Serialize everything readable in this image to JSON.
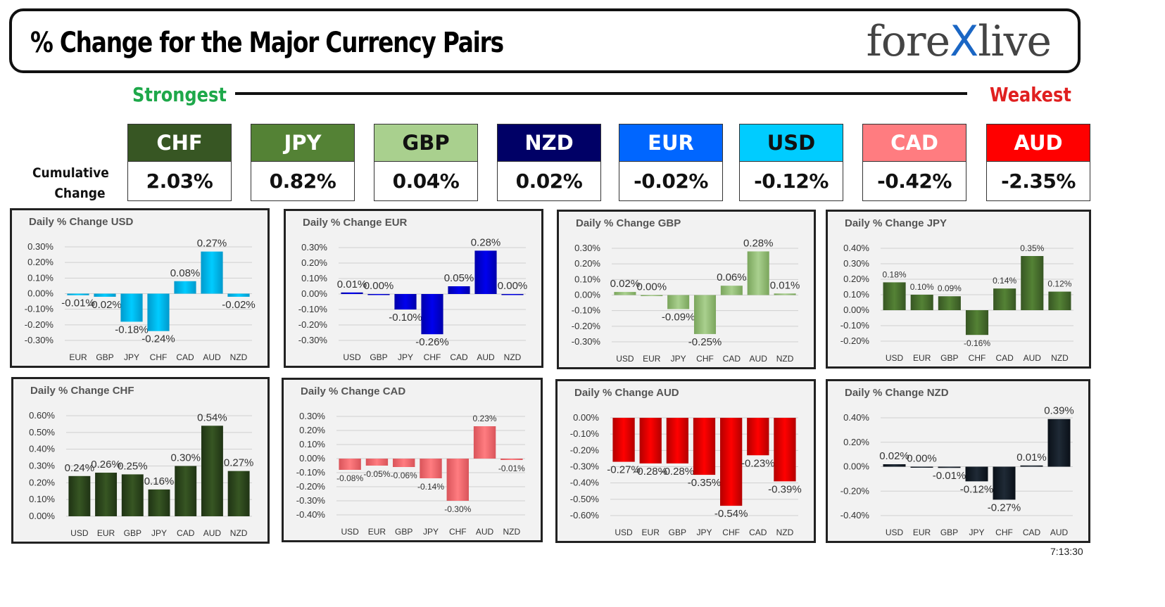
{
  "header": {
    "title": "% Change for the Major Currency Pairs",
    "logo_left": "fore",
    "logo_x": "X",
    "logo_right": "live"
  },
  "ranking": {
    "strongest_label": "Strongest",
    "weakest_label": "Weakest",
    "cumulative_label_line1": "Cumulative",
    "cumulative_label_line2": "Change",
    "currencies": [
      {
        "code": "CHF",
        "value": "2.03%",
        "bg": "#375623",
        "fg": "#ffffff"
      },
      {
        "code": "JPY",
        "value": "0.82%",
        "bg": "#548235",
        "fg": "#ffffff"
      },
      {
        "code": "GBP",
        "value": "0.04%",
        "bg": "#a9d08e",
        "fg": "#111111"
      },
      {
        "code": "NZD",
        "value": "0.02%",
        "bg": "#000066",
        "fg": "#ffffff"
      },
      {
        "code": "EUR",
        "value": "-0.02%",
        "bg": "#0066ff",
        "fg": "#ffffff"
      },
      {
        "code": "USD",
        "value": "-0.12%",
        "bg": "#00ccff",
        "fg": "#111111"
      },
      {
        "code": "CAD",
        "value": "-0.42%",
        "bg": "#ff7c80",
        "fg": "#ffffff"
      },
      {
        "code": "AUD",
        "value": "-2.35%",
        "bg": "#ff0000",
        "fg": "#ffffff"
      }
    ]
  },
  "timestamp": "7:13:30",
  "chart_data": [
    {
      "type": "bar",
      "title": "Daily % Change USD",
      "categories": [
        "EUR",
        "GBP",
        "JPY",
        "CHF",
        "CAD",
        "AUD",
        "NZD"
      ],
      "values": [
        -0.01,
        -0.02,
        -0.18,
        -0.24,
        0.08,
        0.27,
        -0.02
      ],
      "labels": [
        "-0.01%",
        "-0.02%",
        "-0.18%",
        "-0.24%",
        "0.08%",
        "0.27%",
        "-0.02%"
      ],
      "ylim": [
        -0.3,
        0.3
      ],
      "yticks": [
        "0.30%",
        "0.20%",
        "0.10%",
        "0.00%",
        "-0.10%",
        "-0.20%",
        "-0.30%"
      ],
      "color": "#00ccff",
      "color_dark": "#0099cc"
    },
    {
      "type": "bar",
      "title": "Daily % Change EUR",
      "categories": [
        "USD",
        "GBP",
        "JPY",
        "CHF",
        "CAD",
        "AUD",
        "NZD"
      ],
      "values": [
        0.01,
        0.0,
        -0.1,
        -0.26,
        0.05,
        0.28,
        0.0
      ],
      "labels": [
        "0.01%",
        "0.00%",
        "-0.10%",
        "-0.26%",
        "0.05%",
        "0.28%",
        "0.00%"
      ],
      "ylim": [
        -0.3,
        0.3
      ],
      "yticks": [
        "0.30%",
        "0.20%",
        "0.10%",
        "0.00%",
        "-0.10%",
        "-0.20%",
        "-0.30%"
      ],
      "color": "#0000ee",
      "color_dark": "#0000aa"
    },
    {
      "type": "bar",
      "title": "Daily % Change GBP",
      "categories": [
        "USD",
        "EUR",
        "JPY",
        "CHF",
        "CAD",
        "AUD",
        "NZD"
      ],
      "values": [
        0.02,
        0.0,
        -0.09,
        -0.25,
        0.06,
        0.28,
        0.01
      ],
      "labels": [
        "0.02%",
        "0.00%",
        "-0.09%",
        "-0.25%",
        "0.06%",
        "0.28%",
        "0.01%"
      ],
      "ylim": [
        -0.3,
        0.3
      ],
      "yticks": [
        "0.30%",
        "0.20%",
        "0.10%",
        "0.00%",
        "-0.10%",
        "-0.20%",
        "-0.30%"
      ],
      "color": "#a9d08e",
      "color_dark": "#7aa55c"
    },
    {
      "type": "bar",
      "title": "Daily % Change JPY",
      "categories": [
        "USD",
        "EUR",
        "GBP",
        "CHF",
        "CAD",
        "AUD",
        "NZD"
      ],
      "values": [
        0.18,
        0.1,
        0.09,
        -0.16,
        0.14,
        0.35,
        0.12
      ],
      "labels": [
        "0.18%",
        "0.10%",
        "0.09%",
        "-0.16%",
        "0.14%",
        "0.35%",
        "0.12%"
      ],
      "ylim": [
        -0.2,
        0.4
      ],
      "yticks": [
        "0.40%",
        "0.30%",
        "0.20%",
        "0.10%",
        "0.00%",
        "-0.10%",
        "-0.20%"
      ],
      "color": "#548235",
      "color_dark": "#375623"
    },
    {
      "type": "bar",
      "title": "Daily % Change CHF",
      "categories": [
        "USD",
        "EUR",
        "GBP",
        "JPY",
        "CAD",
        "AUD",
        "NZD"
      ],
      "values": [
        0.24,
        0.26,
        0.25,
        0.16,
        0.3,
        0.54,
        0.27
      ],
      "labels": [
        "0.24%",
        "0.26%",
        "0.25%",
        "0.16%",
        "0.30%",
        "0.54%",
        "0.27%"
      ],
      "ylim": [
        0,
        0.6
      ],
      "yticks": [
        "0.60%",
        "0.50%",
        "0.40%",
        "0.30%",
        "0.20%",
        "0.10%",
        "0.00%"
      ],
      "color": "#375623",
      "color_dark": "#1f3314"
    },
    {
      "type": "bar",
      "title": "Daily % Change CAD",
      "categories": [
        "USD",
        "EUR",
        "GBP",
        "JPY",
        "CHF",
        "AUD",
        "NZD"
      ],
      "values": [
        -0.08,
        -0.05,
        -0.06,
        -0.14,
        -0.3,
        0.23,
        -0.01
      ],
      "labels": [
        "-0.08%",
        "-0.05%",
        "-0.06%",
        "-0.14%",
        "-0.30%",
        "0.23%",
        "-0.01%"
      ],
      "ylim": [
        -0.4,
        0.3
      ],
      "yticks": [
        "0.30%",
        "0.20%",
        "0.10%",
        "0.00%",
        "-0.10%",
        "-0.20%",
        "-0.30%",
        "-0.40%"
      ],
      "color": "#ff7c80",
      "color_dark": "#d9545a"
    },
    {
      "type": "bar",
      "title": "Daily % Change AUD",
      "categories": [
        "USD",
        "EUR",
        "GBP",
        "JPY",
        "CHF",
        "CAD",
        "NZD"
      ],
      "values": [
        -0.27,
        -0.28,
        -0.28,
        -0.35,
        -0.54,
        -0.23,
        -0.39
      ],
      "labels": [
        "-0.27%",
        "-0.28%",
        "-0.28%",
        "-0.35%",
        "-0.54%",
        "-0.23%",
        "-0.39%"
      ],
      "ylim": [
        -0.6,
        0.0
      ],
      "yticks": [
        "0.00%",
        "-0.10%",
        "-0.20%",
        "-0.30%",
        "-0.40%",
        "-0.50%",
        "-0.60%"
      ],
      "color": "#ff0000",
      "color_dark": "#b30000"
    },
    {
      "type": "bar",
      "title": "Daily % Change NZD",
      "categories": [
        "USD",
        "EUR",
        "GBP",
        "JPY",
        "CHF",
        "CAD",
        "AUD"
      ],
      "values": [
        0.02,
        0.0,
        -0.01,
        -0.12,
        -0.27,
        0.01,
        0.39
      ],
      "labels": [
        "0.02%",
        "0.00%",
        "-0.01%",
        "-0.12%",
        "-0.27%",
        "0.01%",
        "0.39%"
      ],
      "ylim": [
        -0.4,
        0.4
      ],
      "yticks": [
        "0.40%",
        "0.20%",
        "0.00%",
        "-0.20%",
        "-0.40%"
      ],
      "color": "#1f2a36",
      "color_dark": "#0a1018"
    }
  ]
}
